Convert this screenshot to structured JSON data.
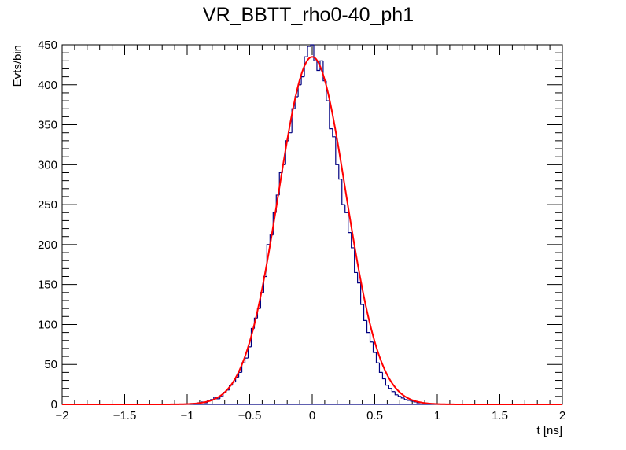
{
  "chart_data": {
    "type": "histogram",
    "title": "VR_BBTT_rho0-40_ph1",
    "xlabel": "t [ns]",
    "ylabel": "Evts/bin",
    "xlim": [
      -2,
      2
    ],
    "ylim": [
      0,
      450
    ],
    "x_ticks": [
      -2,
      -1.5,
      -1,
      -0.5,
      0,
      0.5,
      1,
      1.5,
      2
    ],
    "x_tick_labels": [
      "−2",
      "−1.5",
      "−1",
      "−0.5",
      "0",
      "0.5",
      "1",
      "1.5",
      "2"
    ],
    "y_ticks": [
      0,
      50,
      100,
      150,
      200,
      250,
      300,
      350,
      400,
      450
    ],
    "y_tick_labels": [
      "0",
      "50",
      "100",
      "150",
      "200",
      "250",
      "300",
      "350",
      "400",
      "450"
    ],
    "grid": false,
    "legend": "none",
    "bins": [
      {
        "x": -0.95,
        "y": 1
      },
      {
        "x": -0.925,
        "y": 1
      },
      {
        "x": -0.9,
        "y": 2
      },
      {
        "x": -0.875,
        "y": 3
      },
      {
        "x": -0.85,
        "y": 2
      },
      {
        "x": -0.825,
        "y": 5
      },
      {
        "x": -0.8,
        "y": 6
      },
      {
        "x": -0.775,
        "y": 9
      },
      {
        "x": -0.75,
        "y": 7
      },
      {
        "x": -0.725,
        "y": 10
      },
      {
        "x": -0.7,
        "y": 15
      },
      {
        "x": -0.675,
        "y": 18
      },
      {
        "x": -0.65,
        "y": 24
      },
      {
        "x": -0.625,
        "y": 28
      },
      {
        "x": -0.6,
        "y": 34
      },
      {
        "x": -0.575,
        "y": 40
      },
      {
        "x": -0.55,
        "y": 52
      },
      {
        "x": -0.525,
        "y": 58
      },
      {
        "x": -0.5,
        "y": 72
      },
      {
        "x": -0.475,
        "y": 95
      },
      {
        "x": -0.45,
        "y": 108
      },
      {
        "x": -0.425,
        "y": 120
      },
      {
        "x": -0.4,
        "y": 140
      },
      {
        "x": -0.375,
        "y": 160
      },
      {
        "x": -0.35,
        "y": 200
      },
      {
        "x": -0.325,
        "y": 212
      },
      {
        "x": -0.3,
        "y": 240
      },
      {
        "x": -0.275,
        "y": 262
      },
      {
        "x": -0.25,
        "y": 290
      },
      {
        "x": -0.225,
        "y": 300
      },
      {
        "x": -0.2,
        "y": 330
      },
      {
        "x": -0.175,
        "y": 340
      },
      {
        "x": -0.15,
        "y": 370
      },
      {
        "x": -0.125,
        "y": 385
      },
      {
        "x": -0.1,
        "y": 400
      },
      {
        "x": -0.075,
        "y": 410
      },
      {
        "x": -0.05,
        "y": 435
      },
      {
        "x": -0.025,
        "y": 448
      },
      {
        "x": 0.0,
        "y": 450
      },
      {
        "x": 0.025,
        "y": 430
      },
      {
        "x": 0.05,
        "y": 418
      },
      {
        "x": 0.075,
        "y": 430
      },
      {
        "x": 0.1,
        "y": 405
      },
      {
        "x": 0.125,
        "y": 380
      },
      {
        "x": 0.15,
        "y": 345
      },
      {
        "x": 0.175,
        "y": 335
      },
      {
        "x": 0.2,
        "y": 300
      },
      {
        "x": 0.225,
        "y": 282
      },
      {
        "x": 0.25,
        "y": 250
      },
      {
        "x": 0.275,
        "y": 240
      },
      {
        "x": 0.3,
        "y": 215
      },
      {
        "x": 0.325,
        "y": 196
      },
      {
        "x": 0.35,
        "y": 165
      },
      {
        "x": 0.375,
        "y": 152
      },
      {
        "x": 0.4,
        "y": 125
      },
      {
        "x": 0.425,
        "y": 105
      },
      {
        "x": 0.45,
        "y": 90
      },
      {
        "x": 0.475,
        "y": 78
      },
      {
        "x": 0.5,
        "y": 65
      },
      {
        "x": 0.525,
        "y": 52
      },
      {
        "x": 0.55,
        "y": 40
      },
      {
        "x": 0.575,
        "y": 32
      },
      {
        "x": 0.6,
        "y": 24
      },
      {
        "x": 0.625,
        "y": 20
      },
      {
        "x": 0.65,
        "y": 16
      },
      {
        "x": 0.675,
        "y": 12
      },
      {
        "x": 0.7,
        "y": 10
      },
      {
        "x": 0.725,
        "y": 8
      },
      {
        "x": 0.75,
        "y": 6
      },
      {
        "x": 0.775,
        "y": 5
      },
      {
        "x": 0.8,
        "y": 4
      },
      {
        "x": 0.825,
        "y": 3
      },
      {
        "x": 0.85,
        "y": 2
      },
      {
        "x": 0.875,
        "y": 2
      },
      {
        "x": 0.9,
        "y": 1
      }
    ],
    "fit": {
      "type": "gaussian",
      "amplitude": 435,
      "mean": 0.0,
      "sigma": 0.27,
      "color": "#ff0000"
    },
    "histogram_color": "#000080"
  }
}
